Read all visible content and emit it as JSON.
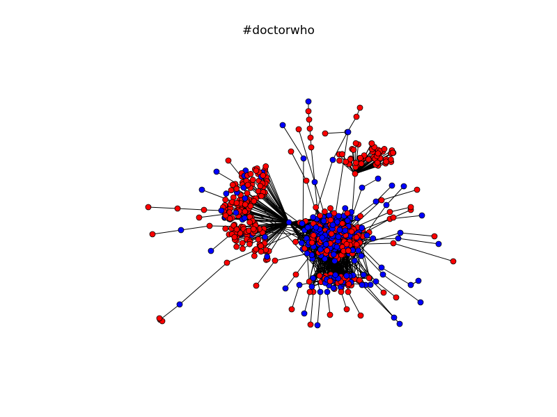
{
  "title": "#doctorwho",
  "colors": {
    "node_red": "#ff0000",
    "node_blue": "#0000ff",
    "edge": "#000000",
    "background": "#ffffff"
  },
  "legend": null
}
